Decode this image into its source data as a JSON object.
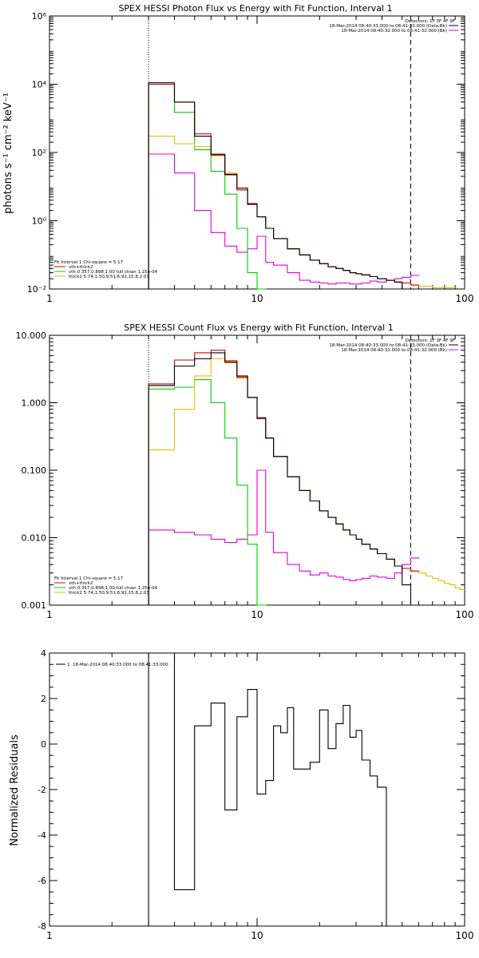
{
  "chart_data": [
    {
      "type": "line",
      "title": "SPEX HESSI Photon Flux vs Energy with Fit Function, Interval 1",
      "ylabel": "photons s⁻¹ cm⁻² keV⁻¹",
      "xscale": "log",
      "yscale": "log",
      "xlim": [
        1,
        100
      ],
      "ylim": [
        0.01,
        1000000
      ],
      "xticks": [
        1,
        10,
        100
      ],
      "xtick_labels": [
        "1",
        "10",
        "100"
      ],
      "yticks": [
        0.01,
        1,
        100,
        10000,
        1000000
      ],
      "ytick_labels": [
        "10⁻²",
        "10⁰",
        "10²",
        "10⁴",
        "10⁶"
      ],
      "vlines": [
        {
          "x": 3,
          "style": "dotted"
        },
        {
          "x": 55,
          "style": "dashed"
        }
      ],
      "legend_top_right": [
        "Detectors: 1F 3F 4F 9F",
        "18-Mar-2014 08:40:33.000 to 08:41:33.000 (Data-Bk)",
        "18-Mar-2014 08:40:32.000 to 08:41:32.000 (Bk)"
      ],
      "legend_bottom_left_header": "Fit Interval 1   Chi-square = 5.17",
      "legend_bottom_left": [
        "vth+thick2",
        "vth 0.357,0.898,1.00  full chian 1.25e-04",
        "thick2 5.74,1.50,9.51,6.92,15.8,2.03"
      ],
      "series": [
        {
          "name": "Data-Bk",
          "color": "#000000",
          "x": [
            3,
            4,
            5,
            6,
            7,
            8,
            9,
            10,
            11,
            12,
            14,
            16,
            18,
            20,
            22,
            24,
            26,
            28,
            30,
            32,
            35,
            38,
            42,
            46,
            50,
            55
          ],
          "y": [
            11000,
            3000,
            300,
            85,
            23,
            9,
            3,
            1.3,
            0.6,
            0.3,
            0.15,
            0.1,
            0.07,
            0.055,
            0.045,
            0.04,
            0.035,
            0.03,
            0.028,
            0.026,
            0.023,
            0.02,
            0.018,
            0.016,
            0.01,
            0.01
          ]
        },
        {
          "name": "vth+thick2",
          "color": "#d00000",
          "x": [
            3,
            4,
            5,
            6,
            7,
            8,
            9,
            10,
            11,
            12,
            14,
            16,
            18,
            20,
            22,
            24,
            26,
            28,
            30,
            32,
            35,
            38,
            42,
            46,
            50,
            55
          ],
          "y": [
            10000,
            3000,
            350,
            90,
            22,
            8,
            3.2,
            1.3,
            0.6,
            0.3,
            0.15,
            0.1,
            0.07,
            0.055,
            0.045,
            0.04,
            0.035,
            0.03,
            0.028,
            0.026,
            0.023,
            0.02,
            0.018,
            0.016,
            0.015,
            0.013
          ]
        },
        {
          "name": "vth",
          "color": "#00d000",
          "x": [
            3,
            4,
            5,
            6,
            7,
            8,
            9,
            10
          ],
          "y": [
            10000,
            1500,
            120,
            28,
            6,
            0.6,
            0.03,
            0.01
          ]
        },
        {
          "name": "thick2",
          "color": "#e0c000",
          "x": [
            3,
            4,
            5,
            6,
            7,
            8,
            9,
            10,
            11,
            12,
            14,
            16,
            18,
            20,
            22,
            24,
            26,
            28,
            30,
            32,
            35,
            38,
            42,
            46,
            50,
            55,
            60,
            70,
            80
          ],
          "y": [
            300,
            180,
            150,
            80,
            25,
            8,
            3.1,
            1.3,
            0.6,
            0.3,
            0.15,
            0.1,
            0.07,
            0.055,
            0.045,
            0.04,
            0.035,
            0.03,
            0.028,
            0.026,
            0.023,
            0.02,
            0.018,
            0.016,
            0.015,
            0.013,
            0.012,
            0.011,
            0.011
          ]
        },
        {
          "name": "Bk",
          "color": "#e000e0",
          "x": [
            3,
            4,
            5,
            6,
            7,
            8,
            9,
            10,
            11,
            12,
            14,
            16,
            18,
            20,
            22,
            24,
            26,
            28,
            30,
            32,
            35,
            38,
            42,
            46,
            50,
            55
          ],
          "y": [
            90,
            25,
            2,
            0.45,
            0.18,
            0.12,
            0.15,
            0.35,
            0.06,
            0.05,
            0.03,
            0.018,
            0.016,
            0.015,
            0.014,
            0.015,
            0.015,
            0.014,
            0.014,
            0.015,
            0.017,
            0.016,
            0.018,
            0.02,
            0.022,
            0.025
          ]
        }
      ]
    },
    {
      "type": "line",
      "title": "SPEX HESSI Count Flux vs Energy with Fit Function, Interval 1",
      "xscale": "log",
      "yscale": "log",
      "xlim": [
        1,
        100
      ],
      "ylim": [
        0.001,
        10
      ],
      "xticks": [
        1,
        10,
        100
      ],
      "xtick_labels": [
        "1",
        "10",
        "100"
      ],
      "yticks": [
        0.001,
        0.01,
        0.1,
        1,
        10
      ],
      "ytick_labels": [
        "0.001",
        "0.010",
        "0.100",
        "1.000",
        "10.000"
      ],
      "vlines": [
        {
          "x": 3,
          "style": "dotted"
        },
        {
          "x": 55,
          "style": "dashed"
        }
      ],
      "legend_top_right": [
        "Detectors: 1F 3F 4F 9F",
        "18-Mar-2014 08:40:33.000 to 08:41:33.000 (Data-Bk)",
        "18-Mar-2014 08:40:32.000 to 08:41:32.000 (Bk)"
      ],
      "legend_bottom_left_header": "Fit Interval 1   Chi-square = 5.17",
      "legend_bottom_left": [
        "vth+thick2",
        "vth 0.357,0.898,1.00  full chian 1.25e-04",
        "thick2 5.74,1.50,9.51,6.92,15.8,2.03"
      ],
      "series": [
        {
          "name": "Data-Bk",
          "color": "#000000",
          "x": [
            3,
            4,
            5,
            6,
            7,
            8,
            9,
            10,
            11,
            12,
            14,
            16,
            18,
            20,
            22,
            24,
            26,
            28,
            30,
            32,
            35,
            38,
            42,
            46,
            50,
            55
          ],
          "y": [
            1.8,
            3.5,
            4.5,
            5.5,
            4.0,
            2.5,
            1.2,
            0.6,
            0.3,
            0.16,
            0.08,
            0.05,
            0.035,
            0.025,
            0.02,
            0.016,
            0.013,
            0.011,
            0.0095,
            0.008,
            0.0068,
            0.0058,
            0.0048,
            0.0038,
            0.002,
            0.001
          ]
        },
        {
          "name": "vth+thick2",
          "color": "#d00000",
          "x": [
            3,
            4,
            5,
            6,
            7,
            8,
            9,
            10,
            11,
            12,
            14,
            16,
            18,
            20,
            22,
            24,
            26,
            28,
            30,
            32,
            35,
            38,
            42,
            46,
            50,
            55
          ],
          "y": [
            1.9,
            4.3,
            5.5,
            6.0,
            4.2,
            2.4,
            1.2,
            0.58,
            0.3,
            0.16,
            0.08,
            0.05,
            0.035,
            0.025,
            0.02,
            0.016,
            0.013,
            0.011,
            0.0095,
            0.008,
            0.0068,
            0.0058,
            0.0048,
            0.0038,
            0.0035,
            0.0032
          ]
        },
        {
          "name": "vth",
          "color": "#00d000",
          "x": [
            3,
            4,
            5,
            6,
            7,
            8,
            9,
            10
          ],
          "y": [
            1.6,
            1.7,
            2.2,
            1.0,
            0.3,
            0.06,
            0.008,
            0.001
          ]
        },
        {
          "name": "thick2",
          "color": "#e0c000",
          "x": [
            3,
            4,
            5,
            6,
            7,
            8,
            9,
            10,
            11,
            12,
            14,
            16,
            18,
            20,
            22,
            24,
            26,
            28,
            30,
            32,
            35,
            38,
            42,
            46,
            50,
            55,
            60,
            65,
            70,
            75,
            80,
            85,
            90,
            95
          ],
          "y": [
            0.2,
            0.8,
            2.5,
            4.5,
            3.9,
            2.3,
            1.2,
            0.58,
            0.3,
            0.16,
            0.08,
            0.05,
            0.035,
            0.025,
            0.02,
            0.016,
            0.013,
            0.011,
            0.0095,
            0.008,
            0.0068,
            0.0058,
            0.0048,
            0.0038,
            0.0035,
            0.0032,
            0.003,
            0.0027,
            0.0025,
            0.0023,
            0.0021,
            0.002,
            0.0018,
            0.0017
          ]
        },
        {
          "name": "Bk",
          "color": "#e000e0",
          "x": [
            3,
            4,
            5,
            6,
            7,
            8,
            9,
            10,
            11,
            12,
            14,
            16,
            18,
            20,
            22,
            24,
            26,
            28,
            30,
            32,
            35,
            38,
            42,
            46,
            50,
            55
          ],
          "y": [
            0.013,
            0.012,
            0.011,
            0.0095,
            0.0085,
            0.0095,
            0.011,
            0.1,
            0.012,
            0.006,
            0.004,
            0.0032,
            0.0028,
            0.003,
            0.0027,
            0.0026,
            0.0024,
            0.0023,
            0.0024,
            0.0025,
            0.0027,
            0.0026,
            0.0025,
            0.003,
            0.004,
            0.005
          ]
        }
      ]
    },
    {
      "type": "line",
      "ylabel": "Normalized Residuals",
      "xscale": "log",
      "xlim": [
        1,
        100
      ],
      "ylim": [
        -8,
        4
      ],
      "xticks": [
        1,
        10,
        100
      ],
      "xtick_labels": [
        "1",
        "10",
        "100"
      ],
      "yticks": [
        -8,
        -6,
        -4,
        -2,
        0,
        2,
        4
      ],
      "ytick_labels": [
        "-8",
        "-6",
        "-4",
        "-2",
        "0",
        "2",
        "4"
      ],
      "legend": [
        "1. 18-Mar-2014 08:40:33.000 to 08:41:33.000"
      ],
      "series": [
        {
          "name": "1. 18-Mar-2014 08:40:33.000 to 08:41:33.000",
          "color": "#000000",
          "edges": [
            3,
            4,
            5,
            6,
            7,
            8,
            9,
            10,
            11,
            12,
            13,
            14,
            15,
            16,
            18,
            20,
            22,
            24,
            26,
            28,
            30,
            32,
            35,
            38,
            42,
            46,
            50,
            55
          ],
          "values": [
            4,
            -6.4,
            0.8,
            1.8,
            -2.9,
            1.2,
            2.4,
            -2.2,
            -1.6,
            0.8,
            0.5,
            1.6,
            -1.1,
            -1.1,
            -0.8,
            1.5,
            -0.2,
            0.9,
            1.7,
            0.3,
            0.6,
            -0.7,
            -1.4,
            -1.9,
            -8,
            -8,
            -8
          ]
        }
      ]
    }
  ]
}
